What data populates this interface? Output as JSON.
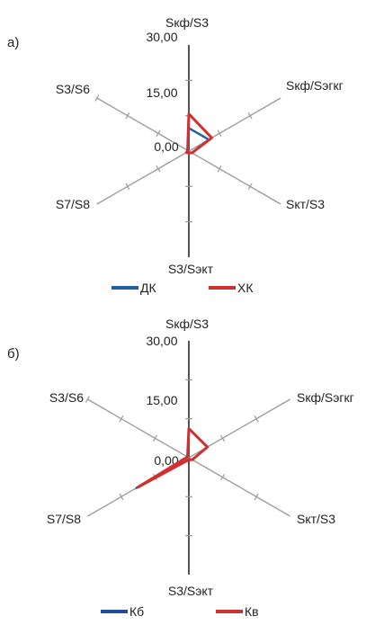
{
  "chart_data": [
    {
      "type": "radar",
      "panel": "а)",
      "axes": [
        "Sкф/S3",
        "Sкф/Sэгкг",
        "Sкт/S3",
        "S3/Sэкт",
        "S7/S8",
        "S3/S6"
      ],
      "ticks": [
        "30,00",
        "15,00",
        "0,00"
      ],
      "range": [
        0,
        30
      ],
      "grid": false,
      "legend_position": "bottom",
      "series": [
        {
          "name": "ДК",
          "color": "#1f5fa8",
          "values": [
            6.5,
            6.5,
            1.0,
            0.5,
            0.6,
            0.3
          ]
        },
        {
          "name": "ХК",
          "color": "#d03030",
          "values": [
            10.5,
            7.5,
            1.0,
            0.5,
            0.8,
            0.4
          ]
        }
      ]
    },
    {
      "type": "radar",
      "panel": "б)",
      "axes": [
        "Sкф/S3",
        "Sкф/Sэгкг",
        "Sкт/S3",
        "S3/Sэкт",
        "S7/S8",
        "S3/S6"
      ],
      "ticks": [
        "30,00",
        "15,00",
        "0,00"
      ],
      "range": [
        0,
        30
      ],
      "grid": false,
      "legend_position": "bottom",
      "series": [
        {
          "name": "Кб",
          "color": "#1f4f9a",
          "values": [
            7.5,
            5.5,
            1.0,
            0.5,
            15.5,
            0.4
          ]
        },
        {
          "name": "Кв",
          "color": "#d03030",
          "values": [
            7.5,
            5.5,
            1.0,
            0.5,
            15.0,
            0.4
          ]
        }
      ]
    }
  ]
}
